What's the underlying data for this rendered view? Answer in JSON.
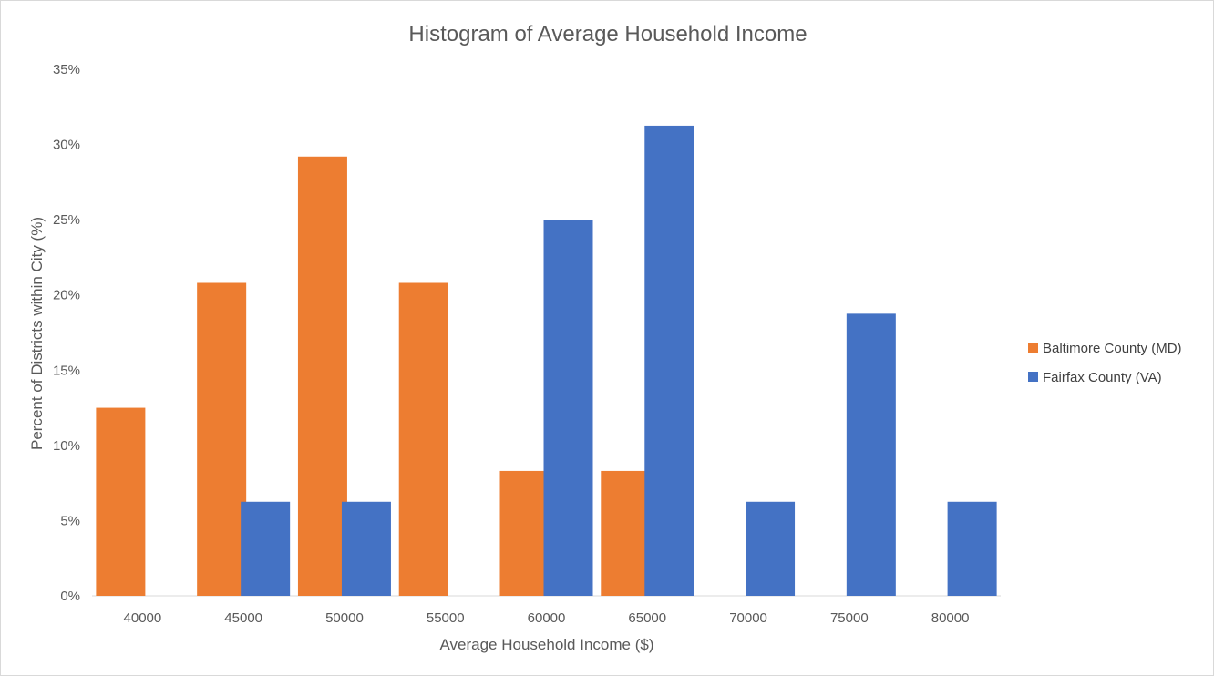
{
  "chart_data": {
    "type": "bar",
    "title": "Histogram of Average Household Income",
    "xlabel": "Average Household Income ($)",
    "ylabel": "Percent of Districts within City (%)",
    "categories": [
      "40000",
      "45000",
      "50000",
      "55000",
      "60000",
      "65000",
      "70000",
      "75000",
      "80000"
    ],
    "ylim": [
      0,
      35
    ],
    "yticks": [
      "0%",
      "5%",
      "10%",
      "15%",
      "20%",
      "25%",
      "30%",
      "35%"
    ],
    "grid": false,
    "legend_position": "right",
    "series": [
      {
        "name": "Baltimore County (MD)",
        "color": "#ED7D31",
        "values": [
          12.5,
          20.8,
          29.2,
          20.8,
          8.3,
          8.3,
          0,
          0,
          0
        ]
      },
      {
        "name": "Fairfax County (VA)",
        "color": "#4472C4",
        "values": [
          0,
          6.25,
          6.25,
          0,
          25,
          31.25,
          6.25,
          18.75,
          6.25
        ]
      }
    ]
  }
}
